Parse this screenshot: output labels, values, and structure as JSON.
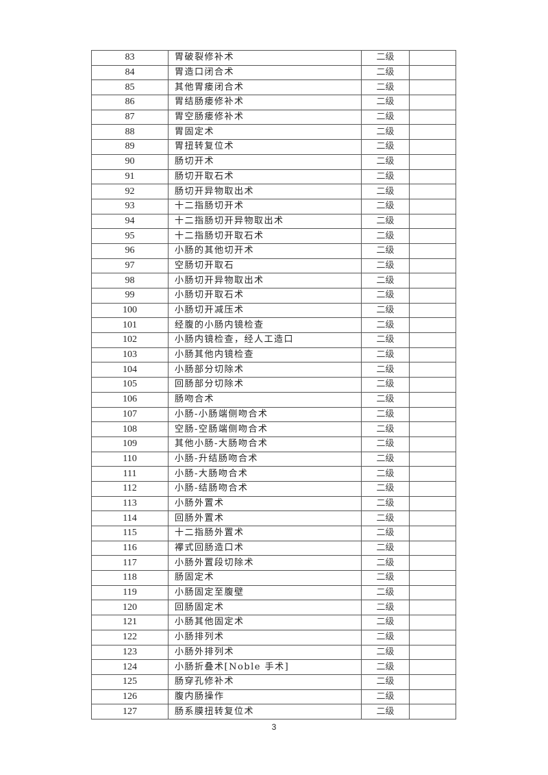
{
  "table": {
    "rows": [
      {
        "no": "83",
        "name": "胃破裂修补术",
        "level": "二级",
        "remark": ""
      },
      {
        "no": "84",
        "name": "胃造口闭合术",
        "level": "二级",
        "remark": ""
      },
      {
        "no": "85",
        "name": "其他胃瘘闭合术",
        "level": "二级",
        "remark": ""
      },
      {
        "no": "86",
        "name": "胃结肠瘘修补术",
        "level": "二级",
        "remark": ""
      },
      {
        "no": "87",
        "name": "胃空肠瘘修补术",
        "level": "二级",
        "remark": ""
      },
      {
        "no": "88",
        "name": "胃固定术",
        "level": "二级",
        "remark": ""
      },
      {
        "no": "89",
        "name": "胃扭转复位术",
        "level": "二级",
        "remark": ""
      },
      {
        "no": "90",
        "name": "肠切开术",
        "level": "二级",
        "remark": ""
      },
      {
        "no": "91",
        "name": "肠切开取石术",
        "level": "二级",
        "remark": ""
      },
      {
        "no": "92",
        "name": "肠切开异物取出术",
        "level": "二级",
        "remark": ""
      },
      {
        "no": "93",
        "name": "十二指肠切开术",
        "level": "二级",
        "remark": ""
      },
      {
        "no": "94",
        "name": "十二指肠切开异物取出术",
        "level": "二级",
        "remark": ""
      },
      {
        "no": "95",
        "name": "十二指肠切开取石术",
        "level": "二级",
        "remark": ""
      },
      {
        "no": "96",
        "name": "小肠的其他切开术",
        "level": "二级",
        "remark": ""
      },
      {
        "no": "97",
        "name": "空肠切开取石",
        "level": "二级",
        "remark": ""
      },
      {
        "no": "98",
        "name": "小肠切开异物取出术",
        "level": "二级",
        "remark": ""
      },
      {
        "no": "99",
        "name": "小肠切开取石术",
        "level": "二级",
        "remark": ""
      },
      {
        "no": "100",
        "name": "小肠切开减压术",
        "level": "二级",
        "remark": ""
      },
      {
        "no": "101",
        "name": "经腹的小肠内镜检查",
        "level": "二级",
        "remark": ""
      },
      {
        "no": "102",
        "name": "小肠内镜检查，经人工造口",
        "level": "二级",
        "remark": ""
      },
      {
        "no": "103",
        "name": "小肠其他内镜检查",
        "level": "二级",
        "remark": ""
      },
      {
        "no": "104",
        "name": "小肠部分切除术",
        "level": "二级",
        "remark": ""
      },
      {
        "no": "105",
        "name": "回肠部分切除术",
        "level": "二级",
        "remark": ""
      },
      {
        "no": "106",
        "name": "肠吻合术",
        "level": "二级",
        "remark": ""
      },
      {
        "no": "107",
        "name": "小肠-小肠端侧吻合术",
        "level": "二级",
        "remark": ""
      },
      {
        "no": "108",
        "name": "空肠-空肠端侧吻合术",
        "level": "二级",
        "remark": ""
      },
      {
        "no": "109",
        "name": "其他小肠-大肠吻合术",
        "level": "二级",
        "remark": ""
      },
      {
        "no": "110",
        "name": "小肠-升结肠吻合术",
        "level": "二级",
        "remark": ""
      },
      {
        "no": "111",
        "name": "小肠-大肠吻合术",
        "level": "二级",
        "remark": ""
      },
      {
        "no": "112",
        "name": "小肠-结肠吻合术",
        "level": "二级",
        "remark": ""
      },
      {
        "no": "113",
        "name": "小肠外置术",
        "level": "二级",
        "remark": ""
      },
      {
        "no": "114",
        "name": "回肠外置术",
        "level": "二级",
        "remark": ""
      },
      {
        "no": "115",
        "name": "十二指肠外置术",
        "level": "二级",
        "remark": ""
      },
      {
        "no": "116",
        "name": "襻式回肠造口术",
        "level": "二级",
        "remark": ""
      },
      {
        "no": "117",
        "name": "小肠外置段切除术",
        "level": "二级",
        "remark": ""
      },
      {
        "no": "118",
        "name": "肠固定术",
        "level": "二级",
        "remark": ""
      },
      {
        "no": "119",
        "name": "小肠固定至腹壁",
        "level": "二级",
        "remark": ""
      },
      {
        "no": "120",
        "name": "回肠固定术",
        "level": "二级",
        "remark": ""
      },
      {
        "no": "121",
        "name": "小肠其他固定术",
        "level": "二级",
        "remark": ""
      },
      {
        "no": "122",
        "name": "小肠排列术",
        "level": "二级",
        "remark": ""
      },
      {
        "no": "123",
        "name": "小肠外排列术",
        "level": "二级",
        "remark": ""
      },
      {
        "no": "124",
        "name": "小肠折叠术[Noble 手术]",
        "level": "二级",
        "remark": ""
      },
      {
        "no": "125",
        "name": "肠穿孔修补术",
        "level": "二级",
        "remark": ""
      },
      {
        "no": "126",
        "name": "腹内肠操作",
        "level": "二级",
        "remark": ""
      },
      {
        "no": "127",
        "name": "肠系膜扭转复位术",
        "level": "二级",
        "remark": ""
      }
    ]
  },
  "footer": {
    "page_number": "3"
  }
}
